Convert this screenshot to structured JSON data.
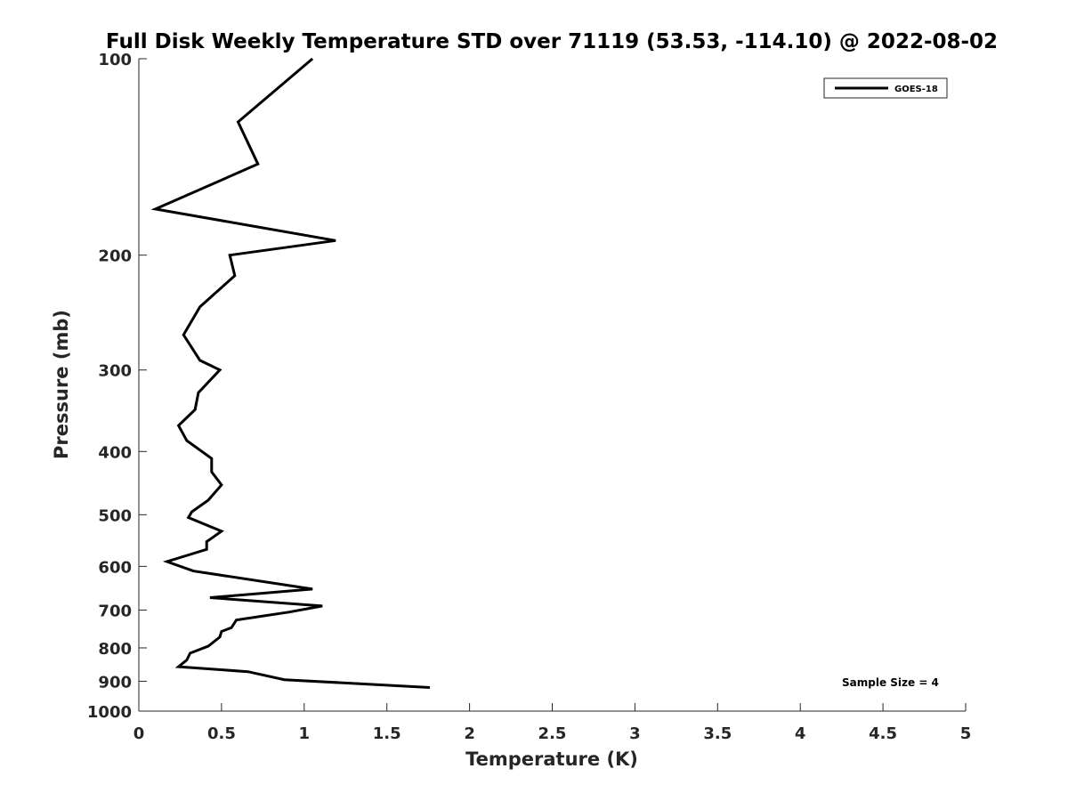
{
  "chart_data": {
    "type": "line",
    "title": "Full Disk Weekly Temperature STD over 71119 (53.53, -114.10) @ 2022-08-02",
    "xlabel": "Temperature (K)",
    "ylabel": "Pressure (mb)",
    "xlim": [
      0,
      5
    ],
    "ylim": [
      100,
      1000
    ],
    "y_scale": "log",
    "y_reversed": true,
    "x_ticks": [
      "0",
      "0.5",
      "1",
      "1.5",
      "2",
      "2.5",
      "3",
      "3.5",
      "4",
      "4.5",
      "5"
    ],
    "y_ticks": [
      "100",
      "200",
      "300",
      "400",
      "500",
      "600",
      "700",
      "800",
      "900",
      "1000"
    ],
    "grid": false,
    "legend_position": "top-right",
    "annotation": "Sample Size = 4",
    "series": [
      {
        "name": "GOES-18",
        "color": "#000000",
        "x": [
          1.05,
          0.6,
          0.72,
          0.1,
          1.19,
          0.55,
          0.58,
          0.37,
          0.27,
          0.37,
          0.49,
          0.36,
          0.34,
          0.24,
          0.29,
          0.44,
          0.44,
          0.5,
          0.42,
          0.32,
          0.3,
          0.5,
          0.41,
          0.41,
          0.17,
          0.33,
          1.05,
          0.43,
          1.11,
          0.91,
          0.59,
          0.56,
          0.5,
          0.49,
          0.42,
          0.31,
          0.29,
          0.24,
          0.66,
          0.88,
          1.76
        ],
        "y": [
          100,
          125,
          145,
          170,
          190,
          200,
          215,
          240,
          265,
          290,
          300,
          325,
          345,
          365,
          385,
          410,
          430,
          450,
          475,
          495,
          505,
          530,
          550,
          565,
          590,
          610,
          650,
          670,
          690,
          705,
          725,
          745,
          755,
          770,
          795,
          815,
          835,
          855,
          870,
          895,
          920
        ]
      }
    ]
  }
}
